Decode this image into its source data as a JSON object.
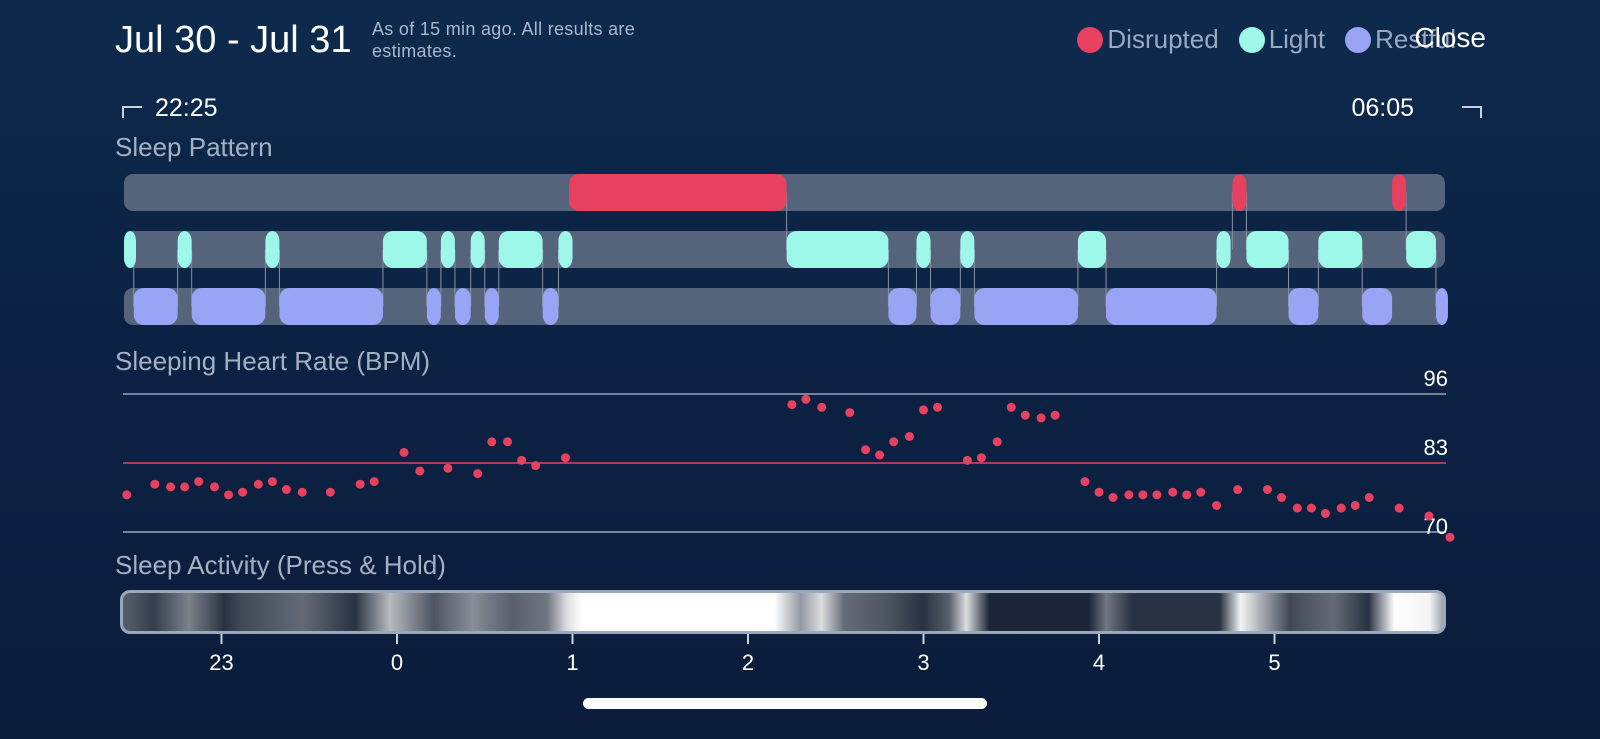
{
  "header": {
    "title": "Jul 30 - Jul 31",
    "note": "As of 15 min ago. All results are estimates.",
    "close_label": "Close"
  },
  "legend": [
    {
      "label": "Disrupted",
      "color": "#e8405f"
    },
    {
      "label": "Light",
      "color": "#9df8ea"
    },
    {
      "label": "Restful",
      "color": "#9aa4f5"
    }
  ],
  "range": {
    "start": "22:25",
    "end": "06:05"
  },
  "sections": {
    "pattern": "Sleep Pattern",
    "heart_rate": "Sleeping Heart Rate (BPM)",
    "activity": "Sleep Activity (Press & Hold)"
  },
  "chart_data": [
    {
      "type": "timeline",
      "name": "sleep-pattern",
      "x_unit": "hours since midnight (Jul 31)",
      "x_range": [
        -1.583,
        6.083
      ],
      "tracks": [
        {
          "stage": "Disrupted",
          "color": "#e8405f",
          "segments": [
            [
              0.98,
              2.22
            ],
            [
              4.76,
              4.84
            ],
            [
              5.67,
              5.75
            ]
          ]
        },
        {
          "stage": "Light",
          "color": "#9df8ea",
          "segments": [
            [
              -1.58,
              -1.5
            ],
            [
              -1.25,
              -1.17
            ],
            [
              -0.75,
              -0.67
            ],
            [
              -0.08,
              0.17
            ],
            [
              0.25,
              0.33
            ],
            [
              0.42,
              0.5
            ],
            [
              0.58,
              0.83
            ],
            [
              0.92,
              1.0
            ],
            [
              2.22,
              2.8
            ],
            [
              2.96,
              3.04
            ],
            [
              3.21,
              3.29
            ],
            [
              3.88,
              4.04
            ],
            [
              4.67,
              4.75
            ],
            [
              4.84,
              5.08
            ],
            [
              5.25,
              5.5
            ],
            [
              5.75,
              5.92
            ]
          ]
        },
        {
          "stage": "Restful",
          "color": "#9aa4f5",
          "segments": [
            [
              -1.5,
              -1.25
            ],
            [
              -1.17,
              -0.75
            ],
            [
              -0.67,
              -0.08
            ],
            [
              0.17,
              0.25
            ],
            [
              0.33,
              0.42
            ],
            [
              0.5,
              0.58
            ],
            [
              0.83,
              0.92
            ],
            [
              2.8,
              2.96
            ],
            [
              3.04,
              3.21
            ],
            [
              3.29,
              3.88
            ],
            [
              4.04,
              4.67
            ],
            [
              5.08,
              5.25
            ],
            [
              5.5,
              5.67
            ],
            [
              5.92,
              6.0
            ]
          ]
        }
      ]
    },
    {
      "type": "scatter",
      "name": "sleeping-heart-rate",
      "ylabel": "BPM",
      "y_ticks": [
        96,
        83,
        70
      ],
      "reference_line": 83,
      "ylim": [
        70,
        96
      ],
      "series": [
        {
          "color": "#e8405f",
          "points": [
            [
              -1.54,
              77
            ],
            [
              -1.38,
              79
            ],
            [
              -1.29,
              78.5
            ],
            [
              -1.21,
              78.5
            ],
            [
              -1.13,
              79.5
            ],
            [
              -1.04,
              78.5
            ],
            [
              -0.96,
              77
            ],
            [
              -0.88,
              77.5
            ],
            [
              -0.79,
              79
            ],
            [
              -0.71,
              79.5
            ],
            [
              -0.63,
              78
            ],
            [
              -0.54,
              77.5
            ],
            [
              -0.38,
              77.5
            ],
            [
              -0.21,
              79
            ],
            [
              -0.13,
              79.5
            ],
            [
              0.04,
              85
            ],
            [
              0.13,
              81.5
            ],
            [
              0.29,
              82
            ],
            [
              0.46,
              81
            ],
            [
              0.54,
              87
            ],
            [
              0.63,
              87
            ],
            [
              0.71,
              83.5
            ],
            [
              0.79,
              82.5
            ],
            [
              0.96,
              84
            ],
            [
              2.25,
              94
            ],
            [
              2.33,
              95
            ],
            [
              2.42,
              93.5
            ],
            [
              2.58,
              92.5
            ],
            [
              2.67,
              85.5
            ],
            [
              2.75,
              84.5
            ],
            [
              2.83,
              87
            ],
            [
              2.92,
              88
            ],
            [
              3.0,
              93
            ],
            [
              3.08,
              93.5
            ],
            [
              3.25,
              83.5
            ],
            [
              3.33,
              84
            ],
            [
              3.42,
              87
            ],
            [
              3.5,
              93.5
            ],
            [
              3.58,
              92
            ],
            [
              3.67,
              91.5
            ],
            [
              3.75,
              92
            ],
            [
              3.92,
              79.5
            ],
            [
              4.0,
              77.5
            ],
            [
              4.08,
              76.5
            ],
            [
              4.17,
              77
            ],
            [
              4.25,
              77
            ],
            [
              4.33,
              77
            ],
            [
              4.42,
              77.5
            ],
            [
              4.5,
              77
            ],
            [
              4.58,
              77.5
            ],
            [
              4.67,
              75
            ],
            [
              4.79,
              78
            ],
            [
              4.96,
              78
            ],
            [
              5.04,
              76.5
            ],
            [
              5.13,
              74.5
            ],
            [
              5.21,
              74.5
            ],
            [
              5.29,
              73.5
            ],
            [
              5.38,
              74.5
            ],
            [
              5.46,
              75
            ],
            [
              5.54,
              76.5
            ],
            [
              5.71,
              74.5
            ],
            [
              5.88,
              73
            ],
            [
              6.0,
              69
            ]
          ]
        }
      ]
    },
    {
      "type": "heatmap",
      "name": "sleep-activity",
      "x_unit": "hours",
      "x_ticks": [
        "23",
        "0",
        "1",
        "2",
        "3",
        "4",
        "5"
      ],
      "x_tick_values": [
        23,
        0,
        1,
        2,
        3,
        4,
        5
      ],
      "intensity": [
        [
          -1.58,
          0.3
        ],
        [
          -1.4,
          0.15
        ],
        [
          -1.2,
          0.45
        ],
        [
          -1.0,
          0.1
        ],
        [
          -0.9,
          0.2
        ],
        [
          -0.55,
          0.35
        ],
        [
          -0.25,
          0.1
        ],
        [
          -0.05,
          0.7
        ],
        [
          0.2,
          0.25
        ],
        [
          0.42,
          0.5
        ],
        [
          0.65,
          0.3
        ],
        [
          0.85,
          0.4
        ],
        [
          0.96,
          0.85
        ],
        [
          1.05,
          1.0
        ],
        [
          2.15,
          1.0
        ],
        [
          2.3,
          0.55
        ],
        [
          2.42,
          0.85
        ],
        [
          2.55,
          0.35
        ],
        [
          2.8,
          0.25
        ],
        [
          3.0,
          0.1
        ],
        [
          3.15,
          0.3
        ],
        [
          3.25,
          0.85
        ],
        [
          3.38,
          0.05
        ],
        [
          3.95,
          0.05
        ],
        [
          4.05,
          0.4
        ],
        [
          4.2,
          0.1
        ],
        [
          4.7,
          0.1
        ],
        [
          4.82,
          0.95
        ],
        [
          4.95,
          0.6
        ],
        [
          5.1,
          0.2
        ],
        [
          5.35,
          0.35
        ],
        [
          5.55,
          0.1
        ],
        [
          5.7,
          1.0
        ],
        [
          5.9,
          0.95
        ],
        [
          6.05,
          0.6
        ]
      ]
    }
  ]
}
